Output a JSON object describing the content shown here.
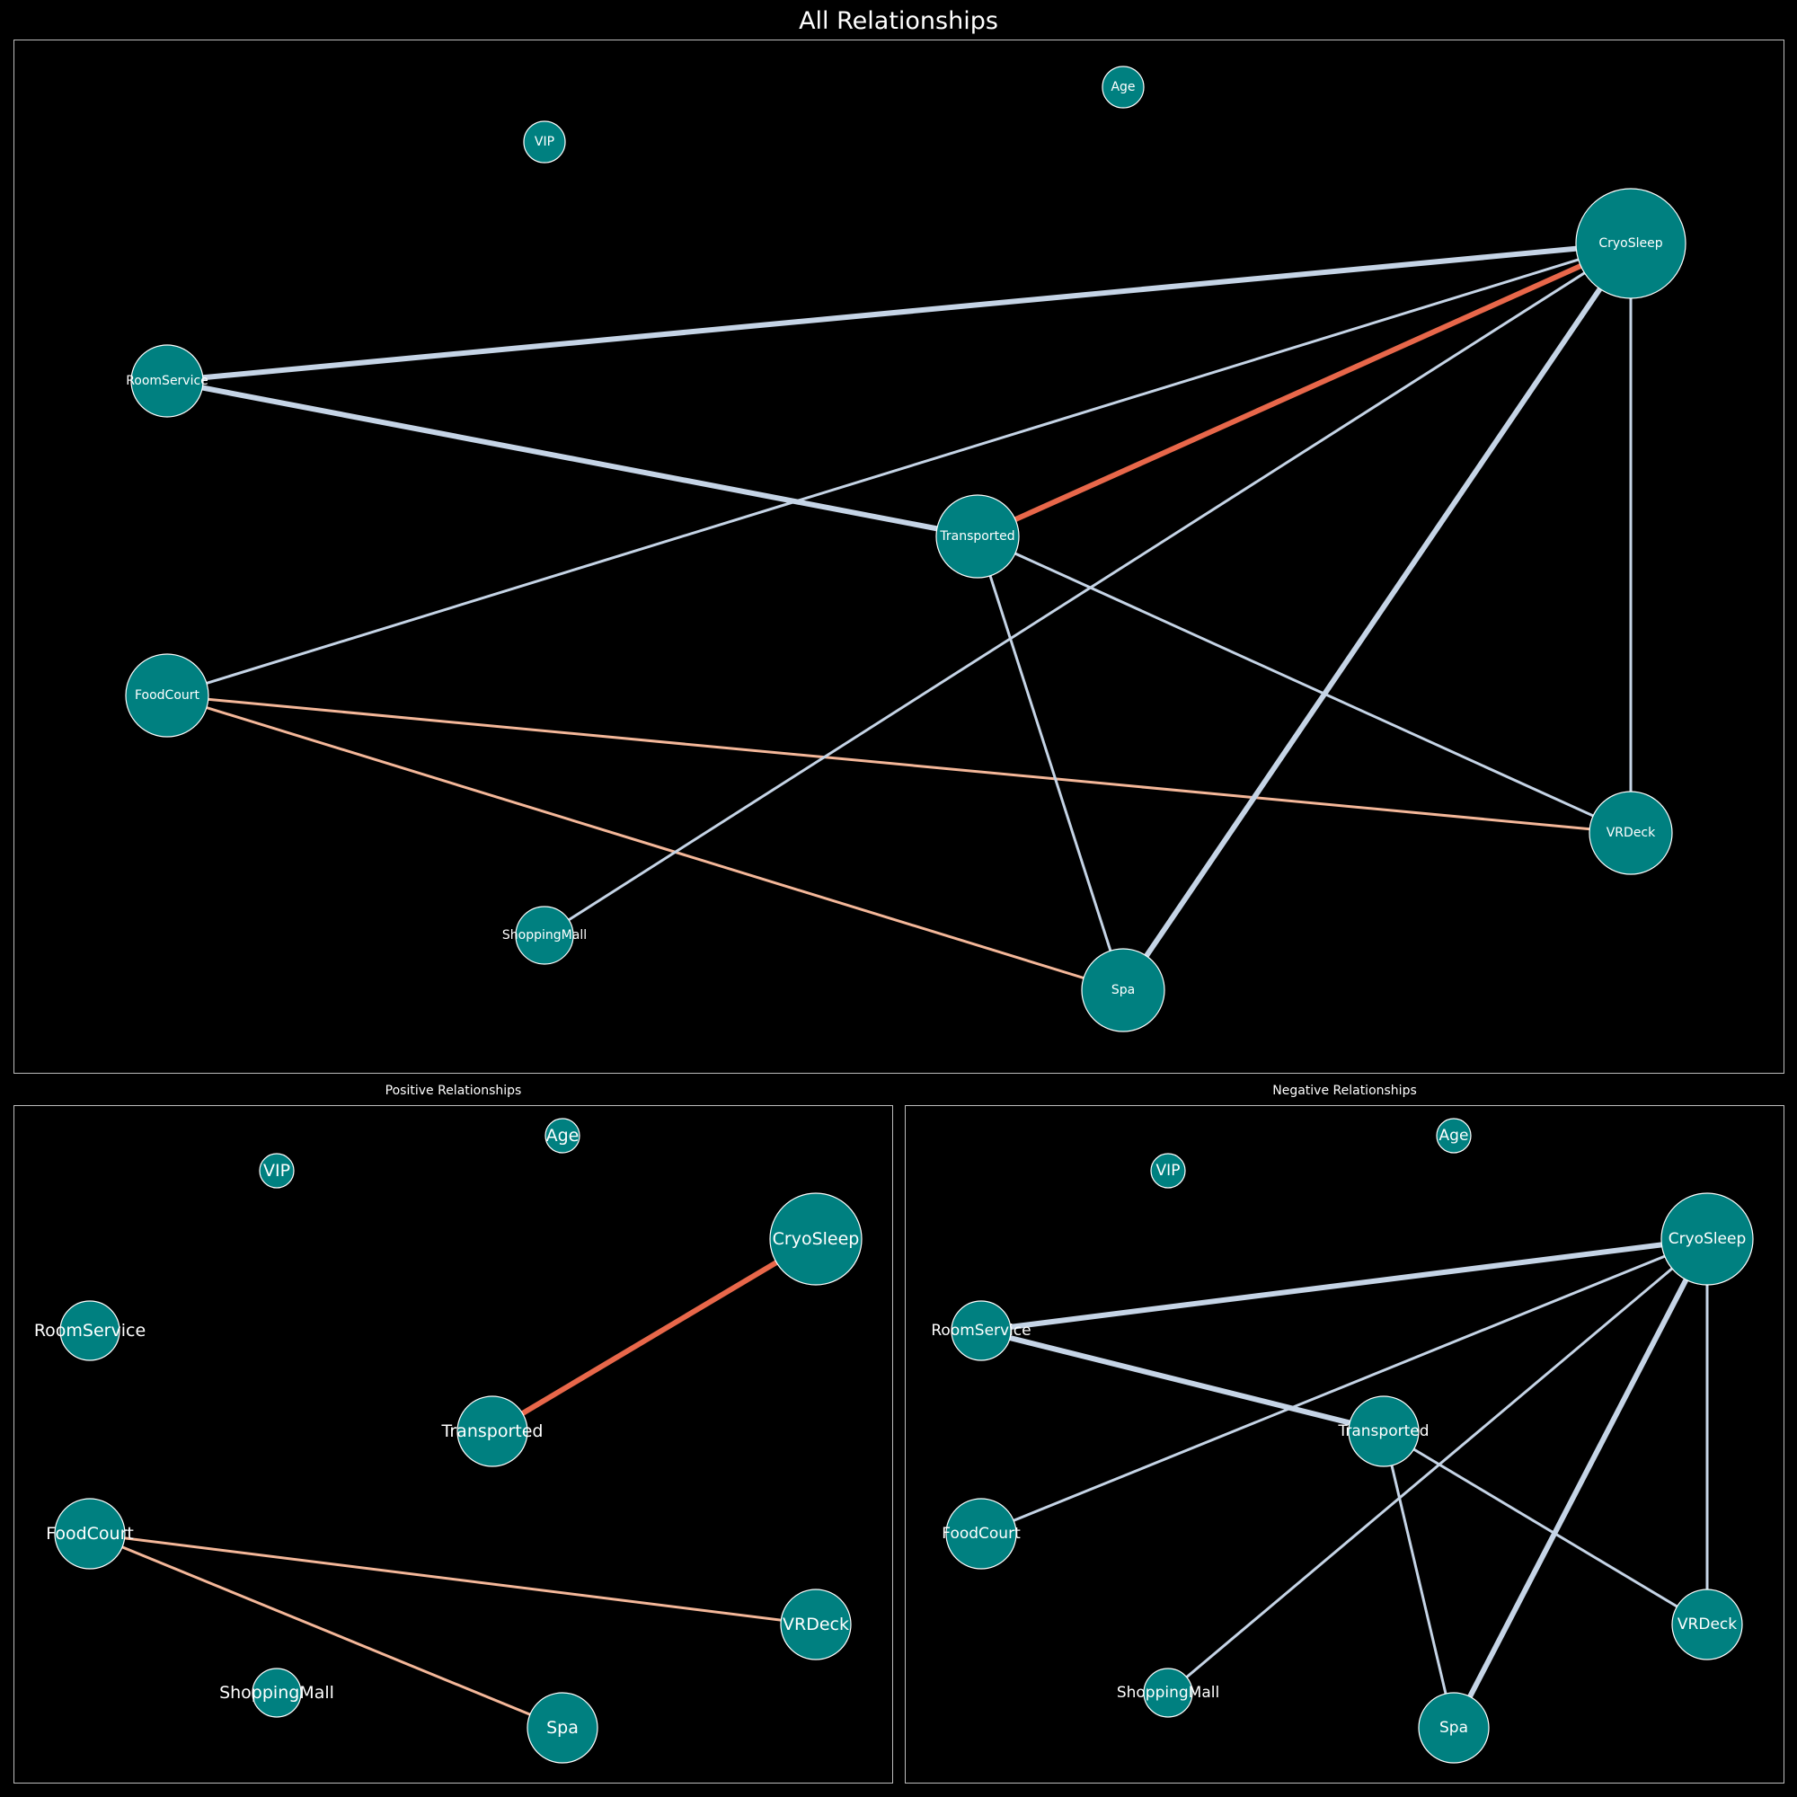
{
  "main_title": "All Relationships",
  "panels": [
    {
      "id": "all",
      "title": "All Relationships"
    },
    {
      "id": "pos",
      "title": "Positive Relationships"
    },
    {
      "id": "neg",
      "title": "Negative Relationships"
    }
  ],
  "colors": {
    "node_fill": "#008080",
    "node_stroke": "#ffffff",
    "strong_positive": "#e8674a",
    "positive": "#f4b799",
    "negative": "#c5d4e6"
  },
  "nodes": [
    {
      "name": "Age",
      "size": "small"
    },
    {
      "name": "VIP",
      "size": "small"
    },
    {
      "name": "CryoSleep",
      "size": "xlarge"
    },
    {
      "name": "RoomService",
      "size": "medium"
    },
    {
      "name": "Transported",
      "size": "large"
    },
    {
      "name": "FoodCourt",
      "size": "large"
    },
    {
      "name": "VRDeck",
      "size": "large"
    },
    {
      "name": "ShoppingMall",
      "size": "medium_small"
    },
    {
      "name": "Spa",
      "size": "large"
    }
  ],
  "edges": [
    {
      "source": "CryoSleep",
      "target": "Transported",
      "sign": "positive",
      "strength": "strong"
    },
    {
      "source": "FoodCourt",
      "target": "VRDeck",
      "sign": "positive",
      "strength": "weak"
    },
    {
      "source": "FoodCourt",
      "target": "Spa",
      "sign": "positive",
      "strength": "weak"
    },
    {
      "source": "CryoSleep",
      "target": "RoomService",
      "sign": "negative",
      "strength": "strong"
    },
    {
      "source": "RoomService",
      "target": "Transported",
      "sign": "negative",
      "strength": "strong"
    },
    {
      "source": "CryoSleep",
      "target": "Spa",
      "sign": "negative",
      "strength": "strong"
    },
    {
      "source": "CryoSleep",
      "target": "FoodCourt",
      "sign": "negative",
      "strength": "weak"
    },
    {
      "source": "CryoSleep",
      "target": "ShoppingMall",
      "sign": "negative",
      "strength": "weak"
    },
    {
      "source": "CryoSleep",
      "target": "VRDeck",
      "sign": "negative",
      "strength": "weak"
    },
    {
      "source": "Transported",
      "target": "Spa",
      "sign": "negative",
      "strength": "weak"
    },
    {
      "source": "Transported",
      "target": "VRDeck",
      "sign": "negative",
      "strength": "weak"
    }
  ]
}
